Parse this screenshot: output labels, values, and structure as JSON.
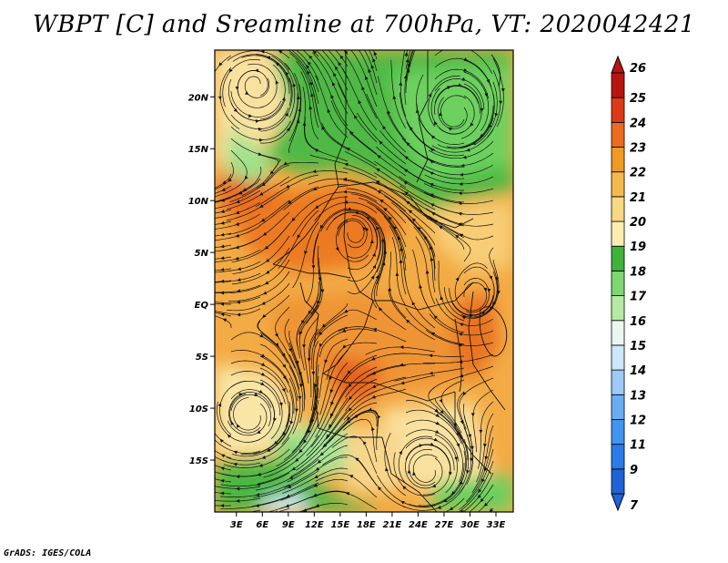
{
  "title": "WBPT [C] and Sreamline at 700hPa, VT: 2020042421",
  "credit": "GrADS: IGES/COLA",
  "map": {
    "lat_labels": [
      {
        "label": "20N",
        "lat": 20
      },
      {
        "label": "15N",
        "lat": 15
      },
      {
        "label": "10N",
        "lat": 10
      },
      {
        "label": "5N",
        "lat": 5
      },
      {
        "label": "EQ",
        "lat": 0
      },
      {
        "label": "5S",
        "lat": -5
      },
      {
        "label": "10S",
        "lat": -10
      },
      {
        "label": "15S",
        "lat": -15
      }
    ],
    "lon_labels": [
      {
        "label": "3E",
        "lon": 3
      },
      {
        "label": "6E",
        "lon": 6
      },
      {
        "label": "9E",
        "lon": 9
      },
      {
        "label": "12E",
        "lon": 12
      },
      {
        "label": "15E",
        "lon": 15
      },
      {
        "label": "18E",
        "lon": 18
      },
      {
        "label": "21E",
        "lon": 21
      },
      {
        "label": "24E",
        "lon": 24
      },
      {
        "label": "27E",
        "lon": 27
      },
      {
        "label": "30E",
        "lon": 30
      },
      {
        "label": "33E",
        "lon": 33
      }
    ],
    "lat_range": [
      -20,
      24.5
    ],
    "lon_range": [
      0.5,
      35
    ]
  },
  "colorbar": {
    "labels": [
      "7",
      "9",
      "11",
      "12",
      "13",
      "14",
      "15",
      "16",
      "17",
      "18",
      "19",
      "20",
      "21",
      "22",
      "23",
      "24",
      "25",
      "26"
    ],
    "colors": [
      "#1f63d6",
      "#2a7ce8",
      "#4294f0",
      "#6aaef2",
      "#9dcaf6",
      "#cce6fa",
      "#e9f7f0",
      "#b5eaa4",
      "#7fd672",
      "#3fb23a",
      "#fbeeb0",
      "#f8d883",
      "#f5b84b",
      "#f09a26",
      "#ea6c1e",
      "#dc3a16",
      "#b81410"
    ]
  },
  "fields": {
    "green_regions": "north (Sahel/Sahara) and far south-west",
    "orange_regions": "central Africa"
  }
}
